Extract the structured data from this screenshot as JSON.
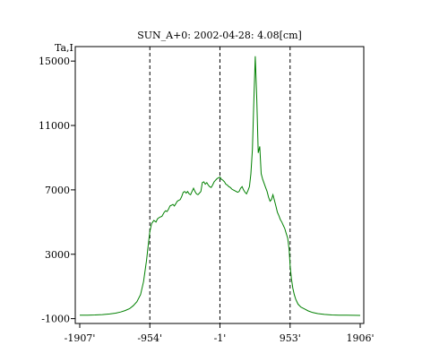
{
  "chart_data": {
    "type": "line",
    "title": "SUN_A+0: 2002-04-28: 4.08[cm]",
    "ylabel": "Ta,I",
    "xlabel": "",
    "xlim": [
      -1907,
      1906
    ],
    "ylim": [
      -1300,
      15900
    ],
    "x_ticks": [
      -1907,
      -954,
      -1,
      953,
      1906
    ],
    "x_tick_labels": [
      "-1907'",
      "-954'",
      "-1'",
      "953'",
      "1906'"
    ],
    "y_ticks": [
      -1000,
      3000,
      7000,
      11000,
      15000
    ],
    "y_tick_labels": [
      "-1000",
      "3000",
      "7000",
      "11000",
      "15000"
    ],
    "vlines": [
      -954,
      -1,
      953
    ],
    "grid": false,
    "line_color": "#008000",
    "series": [
      {
        "name": "",
        "x": [
          -1907,
          -1800,
          -1700,
          -1600,
          -1500,
          -1420,
          -1350,
          -1290,
          -1230,
          -1180,
          -1130,
          -1080,
          -1040,
          -1000,
          -975,
          -954,
          -930,
          -900,
          -870,
          -850,
          -820,
          -790,
          -760,
          -740,
          -720,
          -700,
          -680,
          -660,
          -640,
          -620,
          -600,
          -580,
          -560,
          -540,
          -520,
          -500,
          -480,
          -460,
          -440,
          -420,
          -400,
          -380,
          -360,
          -340,
          -320,
          -300,
          -280,
          -260,
          -240,
          -220,
          -200,
          -180,
          -160,
          -140,
          -120,
          -100,
          -80,
          -60,
          -40,
          -20,
          -1,
          20,
          40,
          60,
          80,
          100,
          120,
          140,
          160,
          180,
          200,
          220,
          240,
          260,
          280,
          300,
          320,
          340,
          360,
          380,
          400,
          420,
          440,
          460,
          480,
          500,
          520,
          540,
          560,
          580,
          600,
          620,
          640,
          660,
          680,
          700,
          720,
          740,
          760,
          780,
          800,
          820,
          840,
          860,
          880,
          900,
          920,
          940,
          953,
          970,
          990,
          1010,
          1030,
          1060,
          1100,
          1150,
          1200,
          1260,
          1330,
          1420,
          1520,
          1620,
          1720,
          1820,
          1906
        ],
        "y": [
          -790,
          -785,
          -770,
          -750,
          -710,
          -660,
          -590,
          -500,
          -380,
          -200,
          50,
          500,
          1300,
          2600,
          3600,
          4400,
          4900,
          5100,
          5000,
          5200,
          5300,
          5350,
          5600,
          5700,
          5650,
          5800,
          6000,
          6050,
          6100,
          6000,
          6150,
          6300,
          6350,
          6400,
          6600,
          6850,
          6900,
          6800,
          6900,
          6750,
          6700,
          6900,
          7100,
          6900,
          6750,
          6700,
          6800,
          6900,
          7450,
          7500,
          7350,
          7450,
          7300,
          7200,
          7150,
          7300,
          7500,
          7600,
          7700,
          7750,
          7800,
          7650,
          7600,
          7500,
          7350,
          7300,
          7200,
          7150,
          7050,
          7000,
          6950,
          6900,
          6850,
          6900,
          7100,
          7200,
          7000,
          6850,
          6750,
          6950,
          7200,
          8000,
          9500,
          12500,
          15300,
          12600,
          9300,
          9700,
          8000,
          7650,
          7400,
          7150,
          6900,
          6550,
          6300,
          6400,
          6700,
          6350,
          6000,
          5600,
          5400,
          5150,
          5000,
          4800,
          4600,
          4300,
          4000,
          3300,
          2300,
          1500,
          900,
          500,
          200,
          -100,
          -280,
          -400,
          -520,
          -620,
          -690,
          -740,
          -770,
          -785,
          -790,
          -795,
          -800
        ]
      }
    ]
  }
}
